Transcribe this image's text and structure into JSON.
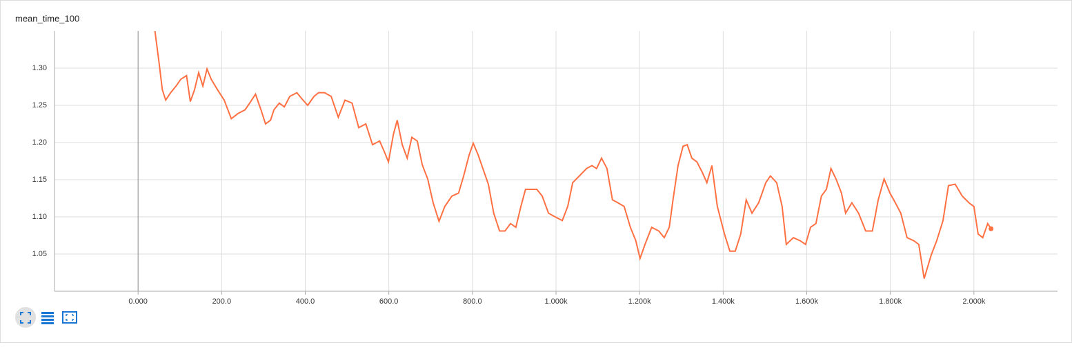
{
  "chart_data": {
    "type": "line",
    "title": "mean_time_100",
    "color": "#ff7043",
    "x": [
      38,
      50,
      58,
      66,
      78,
      91,
      102,
      116,
      125,
      135,
      145,
      155,
      165,
      175,
      190,
      206,
      223,
      239,
      256,
      267,
      281,
      294,
      305,
      317,
      325,
      338,
      350,
      363,
      380,
      393,
      406,
      421,
      432,
      446,
      462,
      479,
      495,
      512,
      528,
      545,
      561,
      578,
      589,
      599,
      611,
      620,
      632,
      644,
      655,
      668,
      680,
      693,
      706,
      720,
      734,
      751,
      767,
      779,
      792,
      802,
      814,
      825,
      838,
      851,
      865,
      878,
      891,
      904,
      916,
      927,
      941,
      954,
      967,
      982,
      998,
      1015,
      1028,
      1040,
      1056,
      1073,
      1086,
      1097,
      1109,
      1122,
      1135,
      1148,
      1163,
      1178,
      1191,
      1201,
      1213,
      1229,
      1246,
      1259,
      1271,
      1280,
      1292,
      1304,
      1314,
      1325,
      1337,
      1350,
      1361,
      1373,
      1386,
      1403,
      1416,
      1429,
      1442,
      1455,
      1469,
      1485,
      1502,
      1513,
      1528,
      1541,
      1551,
      1568,
      1584,
      1597,
      1609,
      1622,
      1635,
      1647,
      1658,
      1670,
      1683,
      1693,
      1708,
      1724,
      1741,
      1757,
      1771,
      1785,
      1799,
      1812,
      1825,
      1840,
      1856,
      1868,
      1881,
      1898,
      1911,
      1926,
      1939,
      1955,
      1972,
      1988,
      2000,
      2010,
      2021,
      2033,
      2041
    ],
    "values": [
      1.36,
      1.308,
      1.271,
      1.257,
      1.267,
      1.276,
      1.285,
      1.29,
      1.255,
      1.271,
      1.294,
      1.276,
      1.299,
      1.285,
      1.271,
      1.257,
      1.232,
      1.239,
      1.244,
      1.253,
      1.265,
      1.244,
      1.225,
      1.23,
      1.244,
      1.253,
      1.248,
      1.262,
      1.267,
      1.258,
      1.25,
      1.262,
      1.267,
      1.267,
      1.262,
      1.234,
      1.257,
      1.253,
      1.22,
      1.225,
      1.197,
      1.202,
      1.188,
      1.174,
      1.211,
      1.23,
      1.197,
      1.179,
      1.207,
      1.202,
      1.17,
      1.151,
      1.119,
      1.094,
      1.114,
      1.128,
      1.132,
      1.155,
      1.183,
      1.199,
      1.183,
      1.165,
      1.144,
      1.105,
      1.081,
      1.081,
      1.091,
      1.086,
      1.114,
      1.137,
      1.137,
      1.137,
      1.128,
      1.105,
      1.1,
      1.095,
      1.114,
      1.146,
      1.155,
      1.165,
      1.169,
      1.165,
      1.179,
      1.165,
      1.123,
      1.119,
      1.114,
      1.086,
      1.068,
      1.044,
      1.063,
      1.086,
      1.081,
      1.072,
      1.086,
      1.123,
      1.169,
      1.195,
      1.197,
      1.179,
      1.174,
      1.16,
      1.146,
      1.169,
      1.114,
      1.077,
      1.054,
      1.054,
      1.077,
      1.123,
      1.105,
      1.119,
      1.146,
      1.155,
      1.146,
      1.114,
      1.063,
      1.072,
      1.068,
      1.063,
      1.086,
      1.091,
      1.128,
      1.137,
      1.165,
      1.151,
      1.132,
      1.105,
      1.119,
      1.105,
      1.081,
      1.081,
      1.123,
      1.151,
      1.132,
      1.119,
      1.105,
      1.072,
      1.068,
      1.063,
      1.017,
      1.049,
      1.068,
      1.095,
      1.142,
      1.144,
      1.128,
      1.119,
      1.114,
      1.077,
      1.072,
      1.091,
      1.084
    ],
    "xlim": [
      -200,
      2200
    ],
    "xticks": [
      {
        "value": 0,
        "label": "0.000"
      },
      {
        "value": 200,
        "label": "200.0"
      },
      {
        "value": 400,
        "label": "400.0"
      },
      {
        "value": 600,
        "label": "600.0"
      },
      {
        "value": 800,
        "label": "800.0"
      },
      {
        "value": 1000,
        "label": "1.000k"
      },
      {
        "value": 1200,
        "label": "1.200k"
      },
      {
        "value": 1400,
        "label": "1.400k"
      },
      {
        "value": 1600,
        "label": "1.600k"
      },
      {
        "value": 1800,
        "label": "1.800k"
      },
      {
        "value": 2000,
        "label": "2.000k"
      }
    ],
    "ylim": [
      1.0,
      1.35
    ],
    "yticks": [
      1.05,
      {
        "value": 1.1,
        "label": "1.10"
      },
      1.15,
      {
        "value": 1.2,
        "label": "1.20"
      },
      1.25,
      {
        "value": 1.3,
        "label": "1.30"
      }
    ],
    "grid": true
  }
}
